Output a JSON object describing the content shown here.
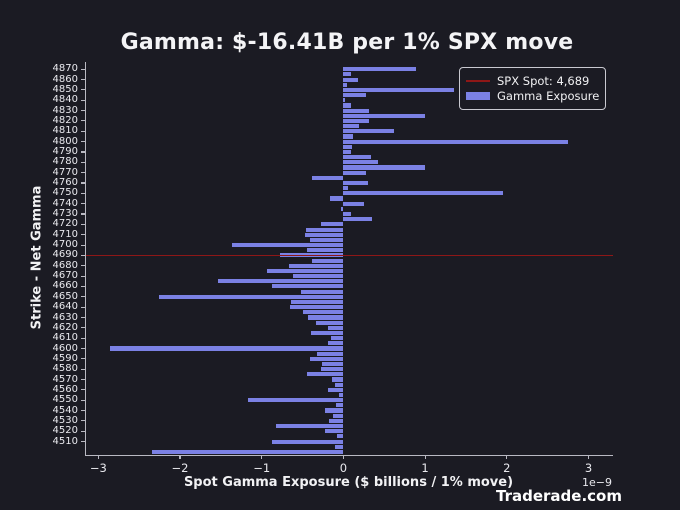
{
  "title": "Gamma: $-16.41B per 1% SPX move",
  "watermark": "Traderade.com",
  "offset_label": "1e−9",
  "legend": {
    "spot_label": "SPX Spot: 4,689",
    "gamma_label": "Gamma Exposure"
  },
  "colors": {
    "background": "#1b1b23",
    "bar": "#7b81e4",
    "spot_line": "#8e1717",
    "spine": "#b9b9c2",
    "text": "#f0f0f2"
  },
  "chart_data": {
    "type": "bar",
    "orientation": "horizontal",
    "title": "Gamma: $-16.41B per 1% SPX move",
    "xlabel": "Spot Gamma Exposure ($ billions / 1% move)",
    "ylabel": "Strike - Net Gamma",
    "x_unit_multiplier": "1e-9",
    "xlim": [
      -3.15,
      3.3
    ],
    "ylim": [
      4497,
      4877
    ],
    "xticks": [
      -3,
      -2,
      -1,
      0,
      1,
      2,
      3
    ],
    "yticks": [
      4870,
      4860,
      4850,
      4840,
      4830,
      4820,
      4810,
      4800,
      4790,
      4780,
      4770,
      4760,
      4750,
      4740,
      4730,
      4720,
      4710,
      4700,
      4690,
      4680,
      4670,
      4660,
      4650,
      4640,
      4630,
      4620,
      4610,
      4600,
      4590,
      4580,
      4570,
      4560,
      4550,
      4540,
      4530,
      4520,
      4510
    ],
    "grid": false,
    "legend_position": "upper right",
    "spot_line": {
      "strike": 4690,
      "spot": 4689,
      "label": "SPX Spot: 4,689"
    },
    "series": [
      {
        "name": "Gamma Exposure",
        "points": [
          {
            "strike": 4870,
            "gex": 0.89
          },
          {
            "strike": 4865,
            "gex": 0.09
          },
          {
            "strike": 4860,
            "gex": 0.18
          },
          {
            "strike": 4855,
            "gex": 0.05
          },
          {
            "strike": 4850,
            "gex": 1.35
          },
          {
            "strike": 4845,
            "gex": 0.28
          },
          {
            "strike": 4840,
            "gex": 0.02
          },
          {
            "strike": 4835,
            "gex": 0.09
          },
          {
            "strike": 4830,
            "gex": 0.31
          },
          {
            "strike": 4825,
            "gex": 1.0
          },
          {
            "strike": 4820,
            "gex": 0.32
          },
          {
            "strike": 4815,
            "gex": 0.19
          },
          {
            "strike": 4810,
            "gex": 0.62
          },
          {
            "strike": 4805,
            "gex": 0.12
          },
          {
            "strike": 4800,
            "gex": 2.75
          },
          {
            "strike": 4795,
            "gex": 0.1
          },
          {
            "strike": 4790,
            "gex": 0.09
          },
          {
            "strike": 4785,
            "gex": 0.34
          },
          {
            "strike": 4780,
            "gex": 0.42
          },
          {
            "strike": 4775,
            "gex": 1.0
          },
          {
            "strike": 4770,
            "gex": 0.28
          },
          {
            "strike": 4765,
            "gex": -0.39
          },
          {
            "strike": 4760,
            "gex": 0.3
          },
          {
            "strike": 4755,
            "gex": 0.06
          },
          {
            "strike": 4750,
            "gex": 1.95
          },
          {
            "strike": 4745,
            "gex": -0.16
          },
          {
            "strike": 4740,
            "gex": 0.25
          },
          {
            "strike": 4735,
            "gex": -0.03
          },
          {
            "strike": 4730,
            "gex": 0.09
          },
          {
            "strike": 4725,
            "gex": 0.35
          },
          {
            "strike": 4720,
            "gex": -0.27
          },
          {
            "strike": 4715,
            "gex": -0.46
          },
          {
            "strike": 4710,
            "gex": -0.47
          },
          {
            "strike": 4705,
            "gex": -0.41
          },
          {
            "strike": 4700,
            "gex": -1.36
          },
          {
            "strike": 4695,
            "gex": -0.44
          },
          {
            "strike": 4690,
            "gex": -0.78
          },
          {
            "strike": 4685,
            "gex": -0.38
          },
          {
            "strike": 4680,
            "gex": -0.66
          },
          {
            "strike": 4675,
            "gex": -0.94
          },
          {
            "strike": 4670,
            "gex": -0.62
          },
          {
            "strike": 4665,
            "gex": -1.53
          },
          {
            "strike": 4660,
            "gex": -0.87
          },
          {
            "strike": 4655,
            "gex": -0.52
          },
          {
            "strike": 4650,
            "gex": -2.26
          },
          {
            "strike": 4645,
            "gex": -0.64
          },
          {
            "strike": 4640,
            "gex": -0.65
          },
          {
            "strike": 4635,
            "gex": -0.5
          },
          {
            "strike": 4630,
            "gex": -0.43
          },
          {
            "strike": 4625,
            "gex": -0.34
          },
          {
            "strike": 4620,
            "gex": -0.19
          },
          {
            "strike": 4615,
            "gex": -0.4
          },
          {
            "strike": 4610,
            "gex": -0.15
          },
          {
            "strike": 4605,
            "gex": -0.19
          },
          {
            "strike": 4600,
            "gex": -2.86
          },
          {
            "strike": 4595,
            "gex": -0.32
          },
          {
            "strike": 4590,
            "gex": -0.41
          },
          {
            "strike": 4585,
            "gex": -0.26
          },
          {
            "strike": 4580,
            "gex": -0.28
          },
          {
            "strike": 4575,
            "gex": -0.45
          },
          {
            "strike": 4570,
            "gex": -0.14
          },
          {
            "strike": 4565,
            "gex": -0.1
          },
          {
            "strike": 4560,
            "gex": -0.19
          },
          {
            "strike": 4555,
            "gex": -0.06
          },
          {
            "strike": 4550,
            "gex": -1.17
          },
          {
            "strike": 4545,
            "gex": -0.09
          },
          {
            "strike": 4540,
            "gex": -0.22
          },
          {
            "strike": 4535,
            "gex": -0.13
          },
          {
            "strike": 4530,
            "gex": -0.18
          },
          {
            "strike": 4525,
            "gex": -0.83
          },
          {
            "strike": 4520,
            "gex": -0.23
          },
          {
            "strike": 4515,
            "gex": -0.08
          },
          {
            "strike": 4510,
            "gex": -0.88
          },
          {
            "strike": 4505,
            "gex": -0.1
          },
          {
            "strike": 4500,
            "gex": -2.34
          }
        ]
      }
    ]
  }
}
